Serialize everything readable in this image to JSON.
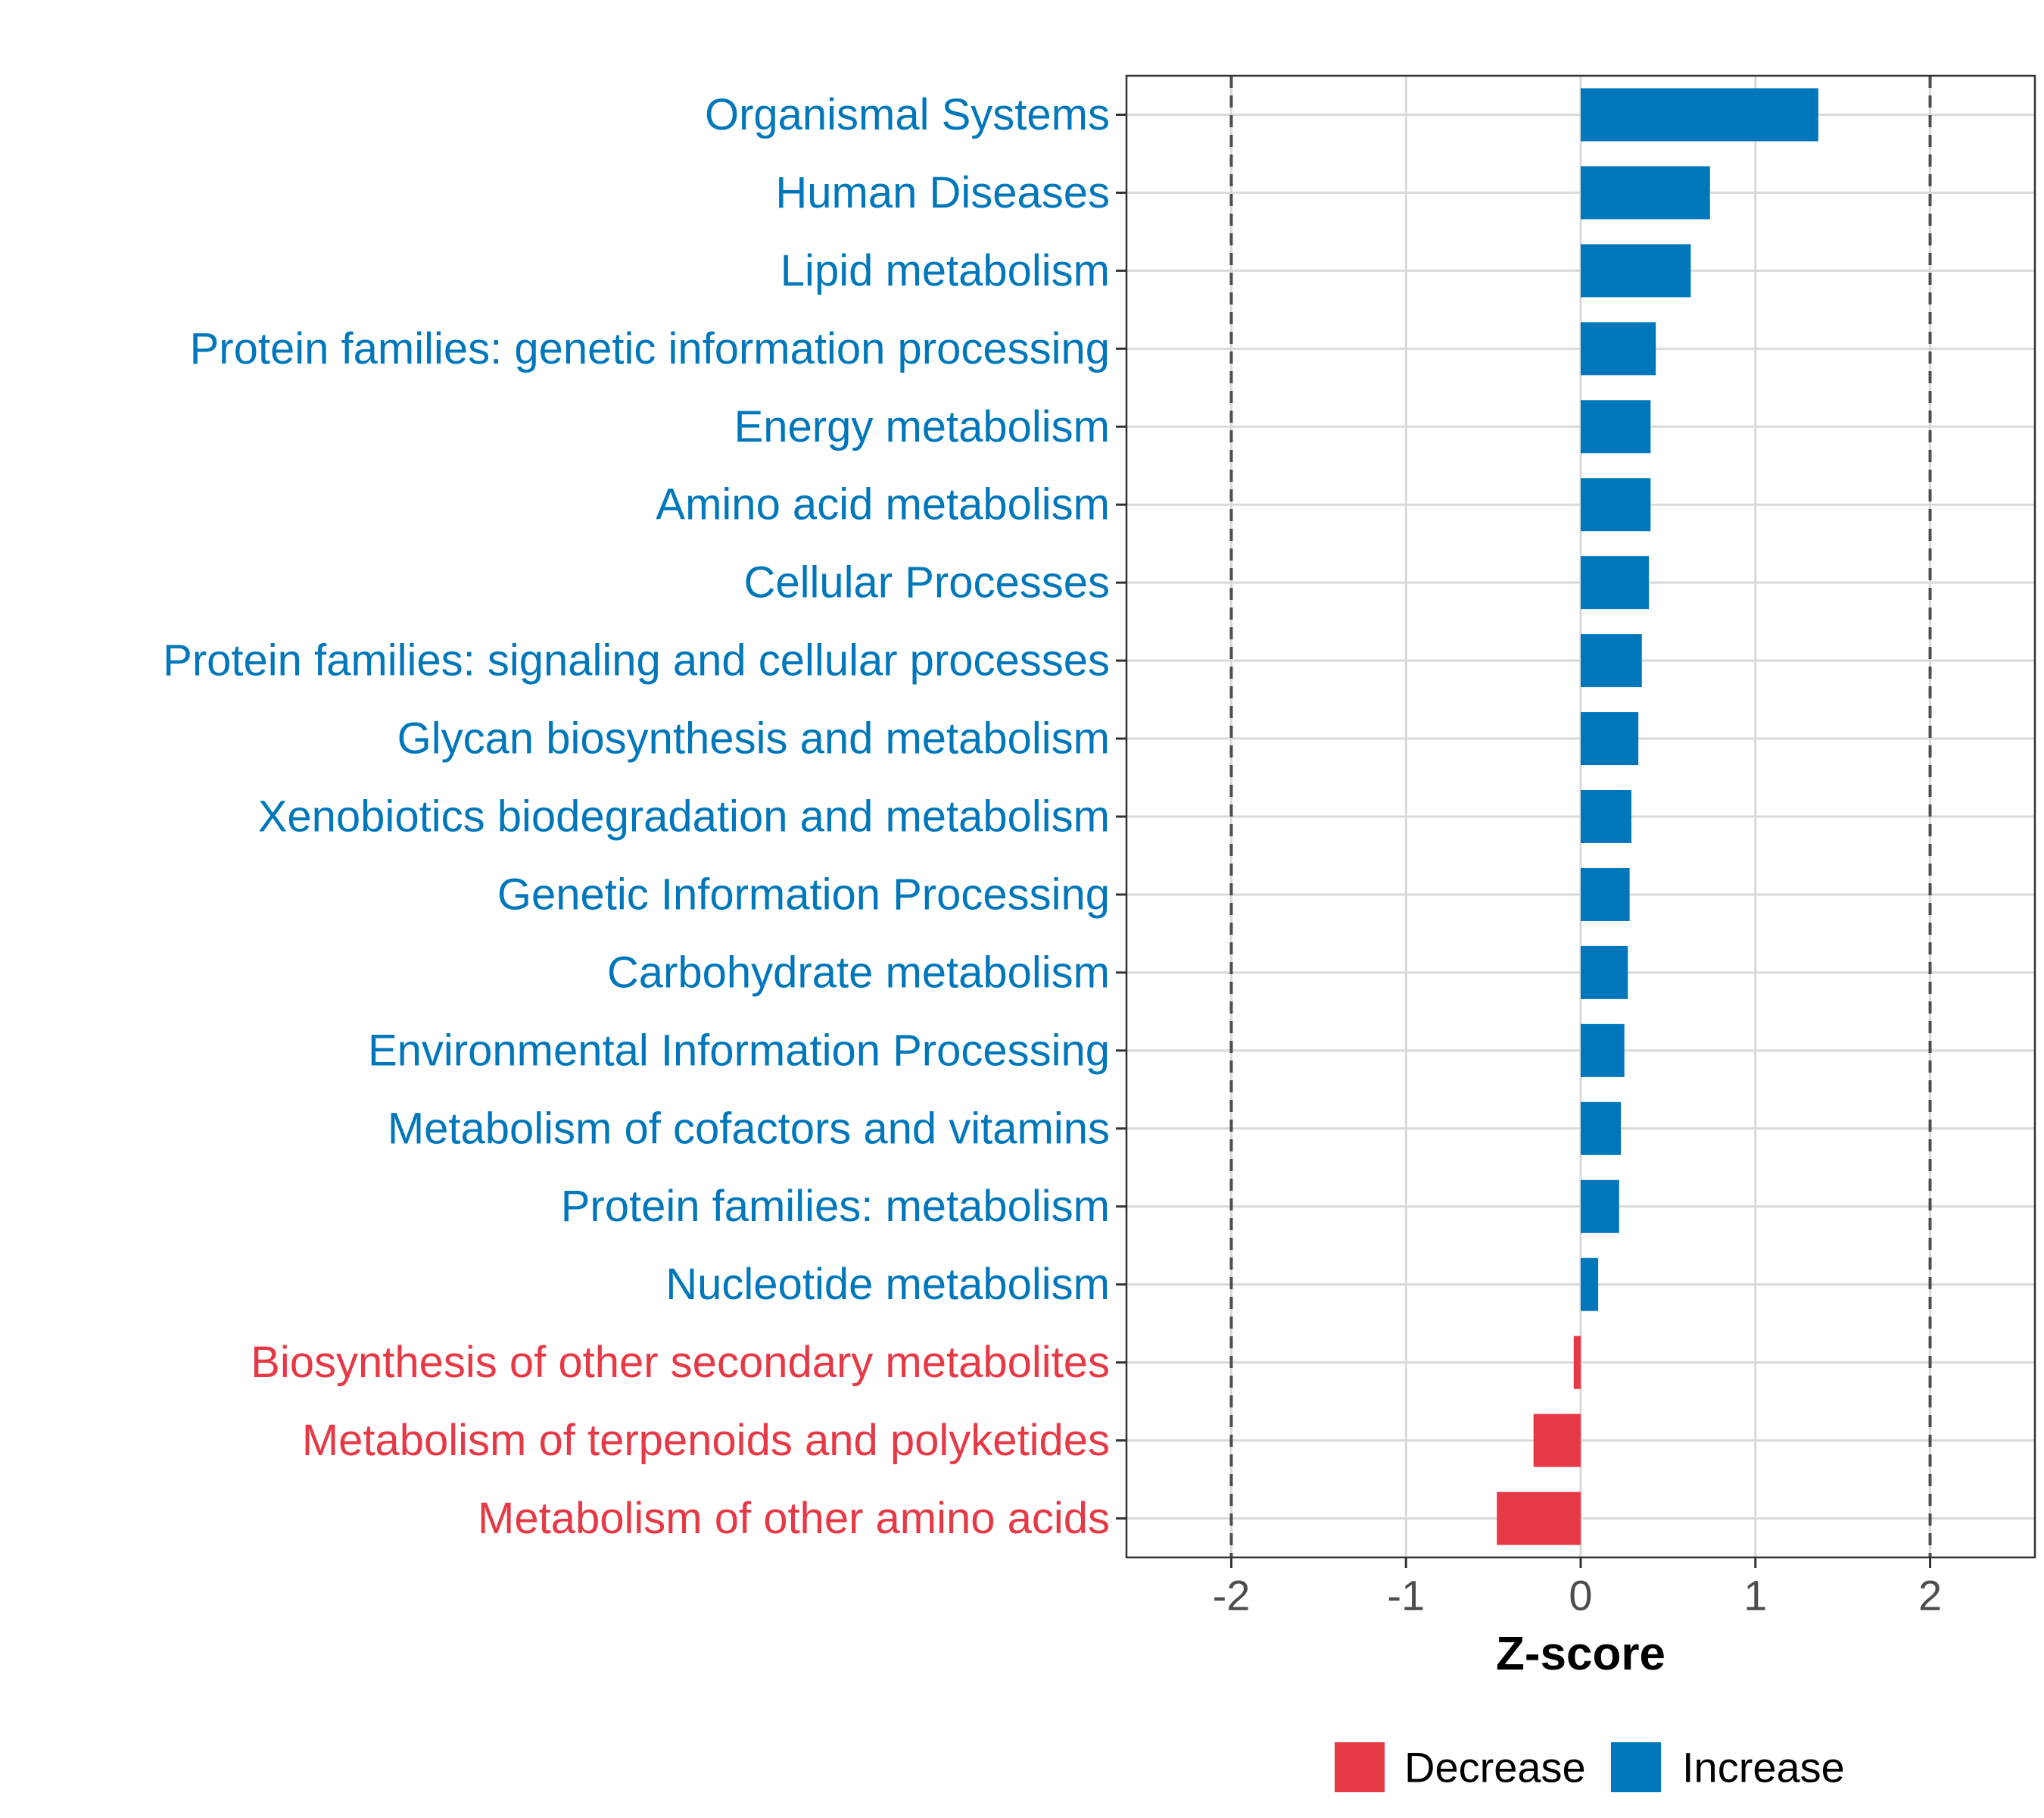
{
  "colors": {
    "increase": "#0077BB",
    "decrease": "#E63946",
    "grid": "#D9D9D9",
    "axis_text": "#4D4D4D",
    "panel_border": "#333333",
    "reference_line": "#4D4D4D"
  },
  "chart_data": {
    "type": "bar",
    "orientation": "horizontal",
    "title": "",
    "xlabel": "Z-score",
    "ylabel": "",
    "xlim": [
      -2.6,
      2.6
    ],
    "xticks": [
      -2,
      -1,
      0,
      1,
      2
    ],
    "xtick_labels": [
      "-2",
      "-1",
      "0",
      "1",
      "2"
    ],
    "reference_lines": [
      -2,
      2
    ],
    "grid": true,
    "legend": {
      "placement": "bottom",
      "entries": [
        {
          "label": "Decrease",
          "color": "#E63946"
        },
        {
          "label": "Increase",
          "color": "#0077BB"
        }
      ]
    },
    "categories": [
      "Organismal Systems",
      "Human Diseases",
      "Lipid metabolism",
      "Protein families: genetic information processing",
      "Energy metabolism",
      "Amino acid metabolism",
      "Cellular Processes",
      "Protein families: signaling and cellular processes",
      "Glycan biosynthesis and metabolism",
      "Xenobiotics biodegradation and metabolism",
      "Genetic Information Processing",
      "Carbohydrate metabolism",
      "Environmental Information Processing",
      "Metabolism of cofactors and vitamins",
      "Protein families: metabolism",
      "Nucleotide metabolism",
      "Biosynthesis of other secondary metabolites",
      "Metabolism of terpenoids and polyketides",
      "Metabolism of other amino acids"
    ],
    "values": [
      1.36,
      0.74,
      0.63,
      0.43,
      0.4,
      0.4,
      0.39,
      0.35,
      0.33,
      0.29,
      0.28,
      0.27,
      0.25,
      0.23,
      0.22,
      0.1,
      -0.04,
      -0.27,
      -0.48
    ],
    "groups": [
      "Increase",
      "Increase",
      "Increase",
      "Increase",
      "Increase",
      "Increase",
      "Increase",
      "Increase",
      "Increase",
      "Increase",
      "Increase",
      "Increase",
      "Increase",
      "Increase",
      "Increase",
      "Increase",
      "Decrease",
      "Decrease",
      "Decrease"
    ]
  }
}
